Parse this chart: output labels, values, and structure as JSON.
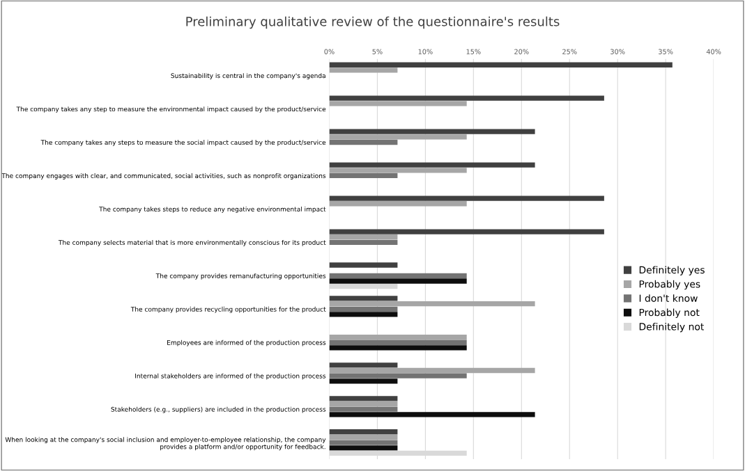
{
  "chart_data": {
    "type": "bar",
    "orientation": "horizontal",
    "title": "Preliminary qualitative review of the questionnaire's results",
    "categories": [
      "Sustainability is central in the company's agenda",
      "The company takes any step to measure the environmental impact caused by the product/service",
      "The company takes any steps to measure the social impact caused by the product/service",
      "The company engages with clear, and communicated, social activities, such as nonprofit organizations",
      "The company takes steps to reduce any negative environmental impact",
      "The company selects material that is more environmentally conscious for its product",
      "The company provides remanufacturing opportunities",
      "The company provides recycling opportunities for the product",
      "Employees are informed of the production process",
      "Internal stakeholders are informed of the production process",
      "Stakeholders (e.g., suppliers) are included in the production process",
      "When looking at the company's social inclusion and employer-to-employee relationship, the company\nprovides a platform and/or opportunity for feedback."
    ],
    "series": [
      {
        "name": "Definitely yes",
        "color": "#404040",
        "values": [
          35.7,
          28.6,
          21.4,
          21.4,
          28.6,
          28.6,
          7.1,
          7.1,
          0,
          7.1,
          7.1,
          7.1
        ]
      },
      {
        "name": "Probably yes",
        "color": "#a6a6a6",
        "values": [
          7.1,
          14.3,
          14.3,
          14.3,
          14.3,
          7.1,
          0,
          21.4,
          14.3,
          21.4,
          7.1,
          7.1
        ]
      },
      {
        "name": "I don't know",
        "color": "#737373",
        "values": [
          0,
          0,
          7.1,
          7.1,
          0,
          7.1,
          14.3,
          7.1,
          14.3,
          14.3,
          7.1,
          7.1
        ]
      },
      {
        "name": "Probably not",
        "color": "#0d0d0d",
        "values": [
          0,
          0,
          0,
          0,
          0,
          0,
          14.3,
          7.1,
          14.3,
          7.1,
          21.4,
          7.1
        ]
      },
      {
        "name": "Definitely not",
        "color": "#d9d9d9",
        "values": [
          0,
          0,
          0,
          0,
          0,
          0,
          7.1,
          0,
          0,
          0,
          0,
          14.3
        ]
      }
    ],
    "xlim": [
      0,
      40
    ],
    "xticks": [
      {
        "value": 0,
        "label": "0%"
      },
      {
        "value": 5,
        "label": "5%"
      },
      {
        "value": 10,
        "label": "10%"
      },
      {
        "value": 15,
        "label": "15%"
      },
      {
        "value": 20,
        "label": "20%"
      },
      {
        "value": 25,
        "label": "25%"
      },
      {
        "value": 30,
        "label": "30%"
      },
      {
        "value": 35,
        "label": "35%"
      },
      {
        "value": 40,
        "label": "40%"
      }
    ],
    "grid": "x",
    "legend": "right"
  }
}
